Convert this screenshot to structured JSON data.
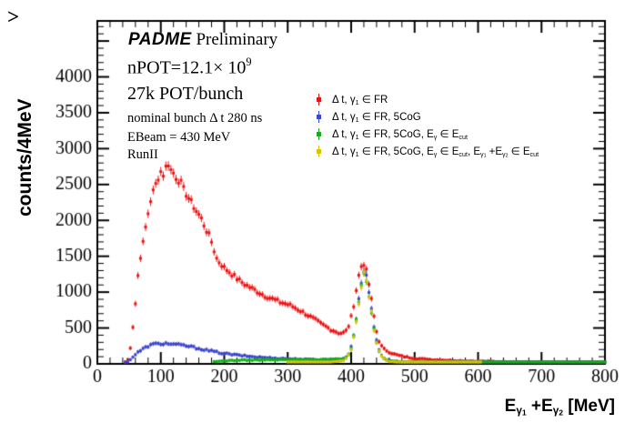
{
  "ui": {
    "corner_glyph": ">",
    "annotations": {
      "padme": "PADME",
      "preliminary": " Preliminary",
      "npot_parts": [
        [
          "t",
          "nPOT=12.1× 10"
        ],
        [
          "u",
          "9"
        ]
      ],
      "pot_bunch": "27k POT/bunch",
      "bunch_label": "nominal bunch Δ t 280 ns",
      "ebeam_label": "EBeam = 430 MeV",
      "run_label": "RunII"
    },
    "y_axis_title": "counts/4MeV",
    "x_axis_title_parts": [
      [
        "t",
        "E"
      ],
      [
        "s",
        "γ"
      ],
      [
        "ss",
        "1"
      ],
      [
        "t",
        " +E"
      ],
      [
        "s",
        "γ"
      ],
      [
        "ss",
        "2"
      ],
      [
        "t",
        "  [MeV]"
      ]
    ],
    "legend": {
      "items": [
        {
          "color": "#ee1111",
          "parts": [
            [
              "t",
              "Δ t, γ"
            ],
            [
              "s",
              "1"
            ],
            [
              "t",
              " ∈ FR"
            ]
          ]
        },
        {
          "color": "#3a45d1",
          "parts": [
            [
              "t",
              "Δ t, γ"
            ],
            [
              "s",
              "1"
            ],
            [
              "t",
              " ∈ FR, 5CoG"
            ]
          ]
        },
        {
          "color": "#0fb014",
          "parts": [
            [
              "t",
              "Δ t, γ"
            ],
            [
              "s",
              "1"
            ],
            [
              "t",
              " ∈ FR, 5CoG, E"
            ],
            [
              "s",
              "γ"
            ],
            [
              "t",
              " ∈ E"
            ],
            [
              "s",
              "cut"
            ]
          ]
        },
        {
          "color": "#d2c40c",
          "parts": [
            [
              "t",
              "Δ t, γ"
            ],
            [
              "s",
              "1"
            ],
            [
              "t",
              " ∈ FR, 5CoG, E"
            ],
            [
              "s",
              "γ"
            ],
            [
              "t",
              " ∈ E"
            ],
            [
              "s",
              "cut"
            ],
            [
              "t",
              ", E"
            ],
            [
              "s",
              "γ"
            ],
            [
              "ss",
              "1"
            ],
            [
              "t",
              " +E"
            ],
            [
              "s",
              "γ"
            ],
            [
              "ss",
              "2"
            ],
            [
              "t",
              " ∈ E"
            ],
            [
              "s",
              "cut"
            ]
          ]
        }
      ]
    }
  },
  "chart_data": {
    "type": "scatter",
    "title": "PADME Preliminary",
    "xlabel": "E_γ1 + E_γ2 [MeV]",
    "ylabel": "counts/4MeV",
    "xlim": [
      0,
      800
    ],
    "ylim": [
      0,
      4780
    ],
    "x_major_step": 100,
    "x_minor_step": 20,
    "y_major_step": 500,
    "y_minor_step": 100,
    "bin_width_mev": 4,
    "grid": false,
    "legend_position": "top-right-inside",
    "frame_color": "#000000",
    "series": [
      {
        "name": "Δt, γ1 ∈ FR",
        "color": "#ee1111",
        "anchors": [
          [
            44,
            8
          ],
          [
            48,
            60
          ],
          [
            52,
            230
          ],
          [
            56,
            520
          ],
          [
            60,
            840
          ],
          [
            64,
            1230
          ],
          [
            68,
            1500
          ],
          [
            72,
            1680
          ],
          [
            76,
            1900
          ],
          [
            80,
            2100
          ],
          [
            84,
            2280
          ],
          [
            88,
            2400
          ],
          [
            92,
            2500
          ],
          [
            96,
            2600
          ],
          [
            100,
            2680
          ],
          [
            104,
            2640
          ],
          [
            108,
            2740
          ],
          [
            112,
            2790
          ],
          [
            116,
            2700
          ],
          [
            120,
            2660
          ],
          [
            124,
            2600
          ],
          [
            128,
            2560
          ],
          [
            132,
            2520
          ],
          [
            136,
            2430
          ],
          [
            140,
            2370
          ],
          [
            144,
            2310
          ],
          [
            148,
            2250
          ],
          [
            152,
            2190
          ],
          [
            156,
            2130
          ],
          [
            160,
            2080
          ],
          [
            164,
            2020
          ],
          [
            168,
            1940
          ],
          [
            172,
            1860
          ],
          [
            176,
            1790
          ],
          [
            180,
            1700
          ],
          [
            184,
            1580
          ],
          [
            188,
            1470
          ],
          [
            192,
            1420
          ],
          [
            196,
            1380
          ],
          [
            200,
            1340
          ],
          [
            208,
            1280
          ],
          [
            216,
            1220
          ],
          [
            224,
            1160
          ],
          [
            232,
            1110
          ],
          [
            240,
            1070
          ],
          [
            248,
            1030
          ],
          [
            256,
            990
          ],
          [
            264,
            950
          ],
          [
            272,
            920
          ],
          [
            280,
            890
          ],
          [
            288,
            860
          ],
          [
            296,
            840
          ],
          [
            304,
            815
          ],
          [
            312,
            780
          ],
          [
            320,
            740
          ],
          [
            328,
            700
          ],
          [
            336,
            655
          ],
          [
            344,
            610
          ],
          [
            352,
            560
          ],
          [
            360,
            520
          ],
          [
            368,
            480
          ],
          [
            376,
            450
          ],
          [
            382,
            425
          ],
          [
            388,
            435
          ],
          [
            392,
            460
          ],
          [
            396,
            530
          ],
          [
            400,
            650
          ],
          [
            404,
            820
          ],
          [
            408,
            1030
          ],
          [
            412,
            1230
          ],
          [
            416,
            1360
          ],
          [
            420,
            1400
          ],
          [
            424,
            1290
          ],
          [
            428,
            1110
          ],
          [
            432,
            890
          ],
          [
            436,
            660
          ],
          [
            440,
            450
          ],
          [
            444,
            320
          ],
          [
            448,
            245
          ],
          [
            452,
            205
          ],
          [
            456,
            185
          ],
          [
            460,
            165
          ],
          [
            468,
            135
          ],
          [
            476,
            115
          ],
          [
            484,
            100
          ],
          [
            492,
            88
          ],
          [
            500,
            78
          ],
          [
            516,
            66
          ],
          [
            532,
            58
          ],
          [
            548,
            52
          ],
          [
            564,
            47
          ],
          [
            580,
            43
          ],
          [
            600,
            38
          ],
          [
            632,
            33
          ],
          [
            664,
            29
          ],
          [
            696,
            26
          ],
          [
            728,
            23
          ],
          [
            760,
            20
          ],
          [
            800,
            16
          ]
        ]
      },
      {
        "name": "Δt, γ1 ∈ FR, 5CoG",
        "color": "#3a45d1",
        "anchors": [
          [
            44,
            8
          ],
          [
            48,
            30
          ],
          [
            52,
            60
          ],
          [
            56,
            95
          ],
          [
            60,
            130
          ],
          [
            64,
            160
          ],
          [
            68,
            185
          ],
          [
            72,
            208
          ],
          [
            76,
            228
          ],
          [
            80,
            248
          ],
          [
            84,
            262
          ],
          [
            88,
            272
          ],
          [
            92,
            278
          ],
          [
            96,
            283
          ],
          [
            100,
            280
          ],
          [
            108,
            284
          ],
          [
            116,
            278
          ],
          [
            124,
            268
          ],
          [
            132,
            262
          ],
          [
            140,
            252
          ],
          [
            148,
            238
          ],
          [
            156,
            222
          ],
          [
            164,
            207
          ],
          [
            172,
            192
          ],
          [
            180,
            178
          ],
          [
            188,
            164
          ],
          [
            196,
            150
          ],
          [
            204,
            140
          ],
          [
            212,
            131
          ],
          [
            220,
            123
          ],
          [
            228,
            115
          ],
          [
            236,
            108
          ],
          [
            244,
            101
          ],
          [
            252,
            95
          ],
          [
            260,
            90
          ],
          [
            268,
            86
          ],
          [
            276,
            82
          ],
          [
            284,
            78
          ],
          [
            292,
            75
          ],
          [
            300,
            72
          ],
          [
            316,
            66
          ],
          [
            332,
            61
          ],
          [
            348,
            58
          ],
          [
            364,
            56
          ],
          [
            372,
            56
          ],
          [
            380,
            60
          ],
          [
            388,
            75
          ],
          [
            392,
            95
          ],
          [
            396,
            140
          ],
          [
            400,
            230
          ],
          [
            404,
            400
          ],
          [
            408,
            640
          ],
          [
            412,
            900
          ],
          [
            416,
            1130
          ],
          [
            420,
            1310
          ],
          [
            424,
            1210
          ],
          [
            428,
            1000
          ],
          [
            432,
            760
          ],
          [
            436,
            520
          ],
          [
            440,
            330
          ],
          [
            444,
            200
          ],
          [
            448,
            125
          ],
          [
            452,
            82
          ],
          [
            456,
            58
          ],
          [
            460,
            45
          ],
          [
            476,
            30
          ],
          [
            492,
            24
          ],
          [
            508,
            20
          ],
          [
            540,
            15
          ],
          [
            572,
            12
          ],
          [
            604,
            10
          ],
          [
            650,
            8
          ],
          [
            700,
            6
          ],
          [
            750,
            5
          ],
          [
            800,
            4
          ]
        ]
      },
      {
        "name": "Δt, γ1 ∈ FR, 5CoG, Eγ ∈ Ecut",
        "color": "#0fb014",
        "anchors": [
          [
            184,
            28
          ],
          [
            192,
            36
          ],
          [
            200,
            42
          ],
          [
            208,
            46
          ],
          [
            216,
            49
          ],
          [
            224,
            51
          ],
          [
            232,
            52
          ],
          [
            240,
            53
          ],
          [
            248,
            54
          ],
          [
            256,
            55
          ],
          [
            264,
            55
          ],
          [
            272,
            56
          ],
          [
            280,
            56
          ],
          [
            288,
            57
          ],
          [
            296,
            58
          ],
          [
            304,
            58
          ],
          [
            312,
            59
          ],
          [
            320,
            60
          ],
          [
            328,
            60
          ],
          [
            336,
            60
          ],
          [
            344,
            60
          ],
          [
            352,
            61
          ],
          [
            360,
            61
          ],
          [
            368,
            62
          ],
          [
            376,
            64
          ],
          [
            384,
            70
          ],
          [
            388,
            78
          ],
          [
            392,
            98
          ],
          [
            396,
            130
          ],
          [
            400,
            215
          ],
          [
            404,
            380
          ],
          [
            408,
            610
          ],
          [
            412,
            870
          ],
          [
            416,
            1100
          ],
          [
            420,
            1270
          ],
          [
            424,
            1170
          ],
          [
            428,
            960
          ],
          [
            432,
            730
          ],
          [
            436,
            500
          ],
          [
            440,
            310
          ],
          [
            444,
            185
          ],
          [
            448,
            115
          ],
          [
            452,
            76
          ],
          [
            456,
            54
          ],
          [
            460,
            40
          ],
          [
            476,
            28
          ],
          [
            492,
            22
          ],
          [
            508,
            18
          ],
          [
            540,
            14
          ],
          [
            572,
            11
          ],
          [
            604,
            9
          ],
          [
            650,
            7
          ],
          [
            700,
            6
          ],
          [
            750,
            5
          ],
          [
            800,
            4
          ]
        ]
      },
      {
        "name": "Δt, γ1 ∈ FR, 5CoG, Eγ ∈ Ecut, Eγ1+Eγ2 ∈ Ecut",
        "color": "#d2c40c",
        "anchors": [
          [
            300,
            6
          ],
          [
            312,
            9
          ],
          [
            324,
            12
          ],
          [
            336,
            15
          ],
          [
            348,
            18
          ],
          [
            360,
            21
          ],
          [
            368,
            24
          ],
          [
            376,
            28
          ],
          [
            384,
            36
          ],
          [
            388,
            48
          ],
          [
            392,
            75
          ],
          [
            396,
            120
          ],
          [
            400,
            205
          ],
          [
            404,
            365
          ],
          [
            408,
            590
          ],
          [
            412,
            850
          ],
          [
            416,
            1080
          ],
          [
            420,
            1250
          ],
          [
            424,
            1150
          ],
          [
            428,
            940
          ],
          [
            432,
            710
          ],
          [
            436,
            480
          ],
          [
            440,
            295
          ],
          [
            444,
            175
          ],
          [
            448,
            105
          ],
          [
            452,
            68
          ],
          [
            456,
            48
          ],
          [
            460,
            35
          ],
          [
            476,
            20
          ],
          [
            492,
            13
          ],
          [
            508,
            9
          ],
          [
            540,
            6
          ],
          [
            572,
            4
          ],
          [
            604,
            3
          ]
        ]
      }
    ]
  }
}
